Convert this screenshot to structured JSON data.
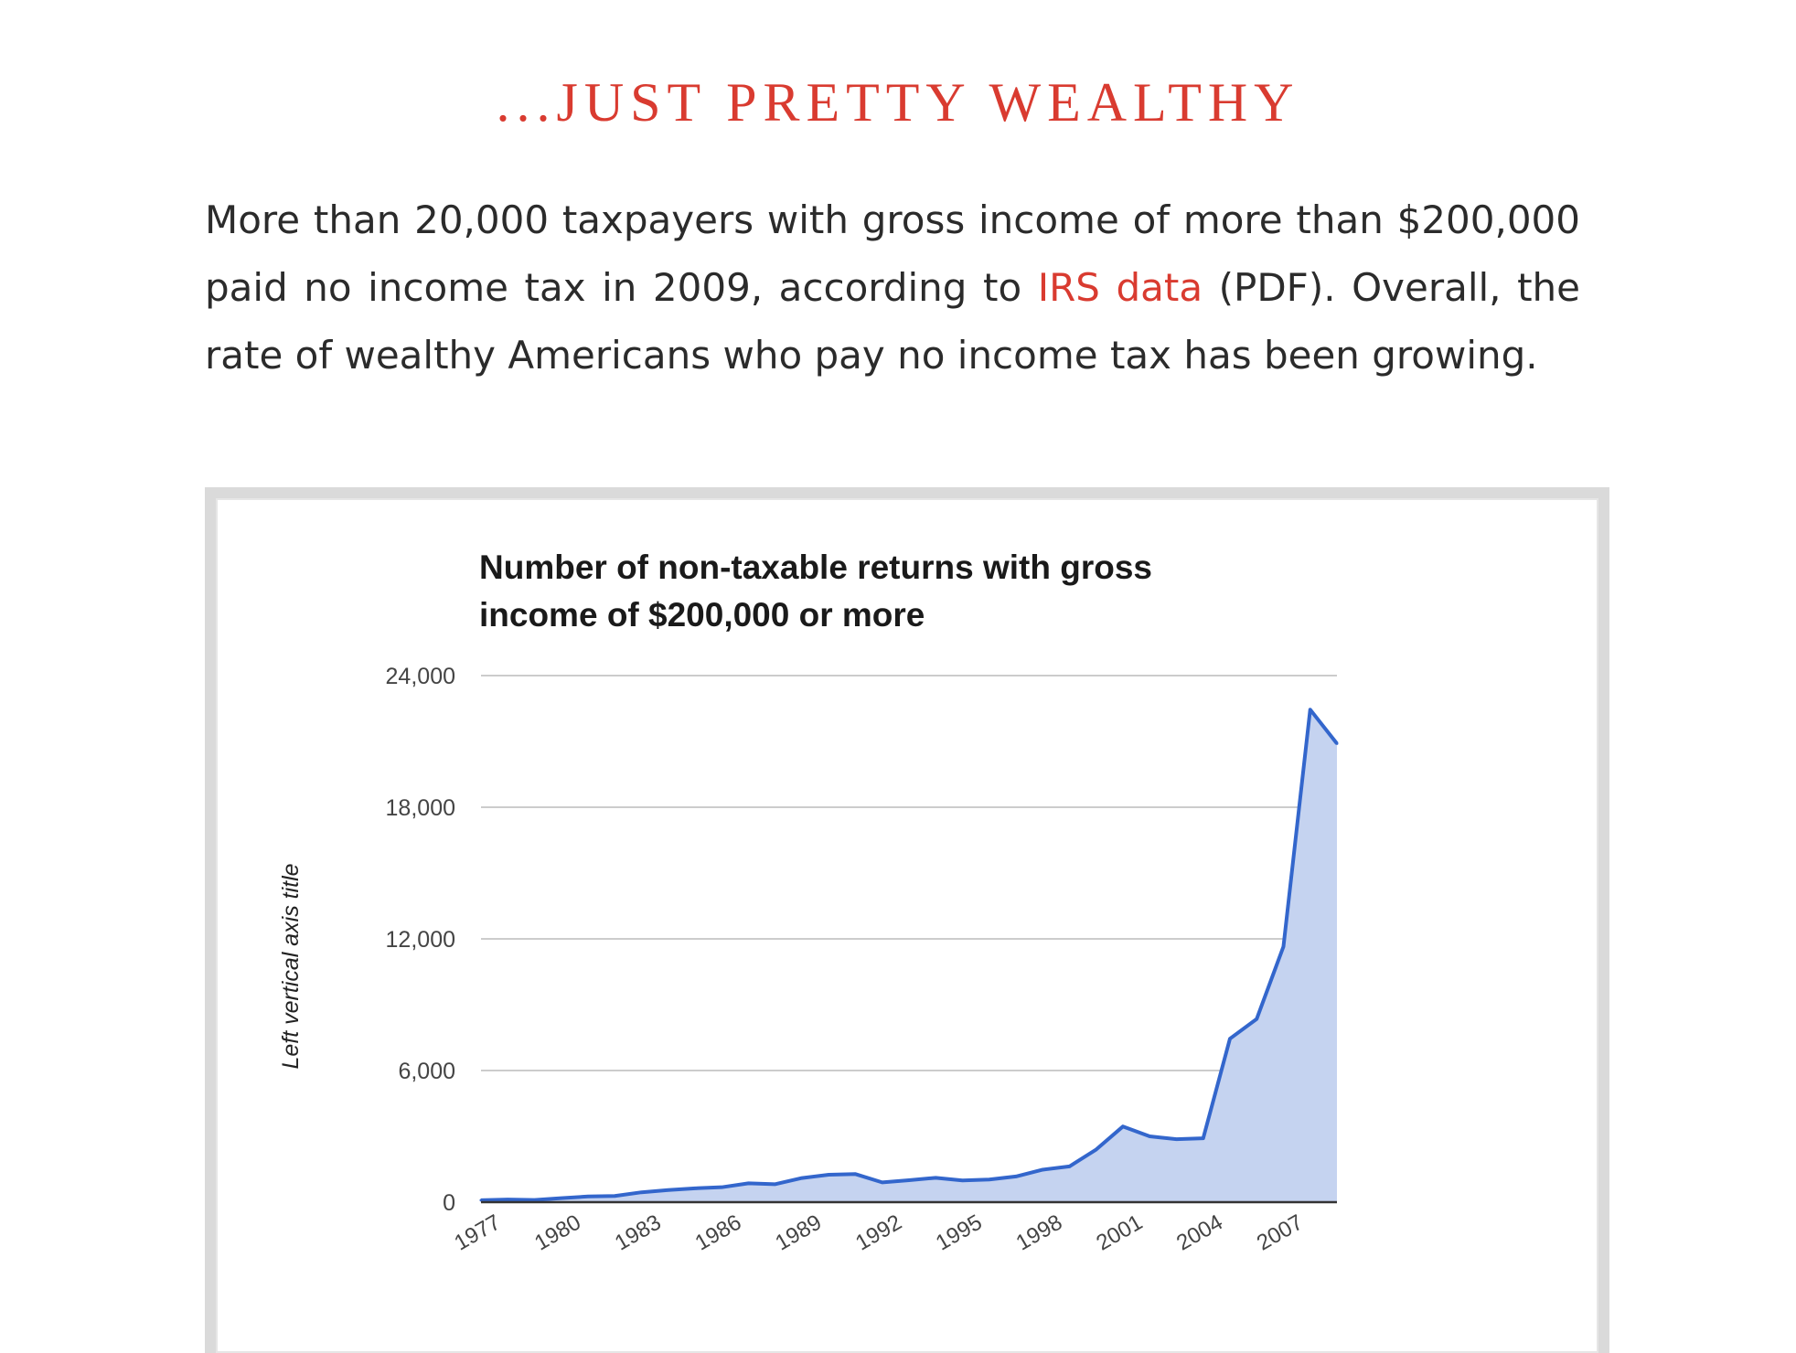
{
  "section_title": "...JUST PRETTY WEALTHY",
  "paragraph": {
    "before_link": "More than 20,000 taxpayers with gross income of more than $200,000 paid no income tax in 2009, according to ",
    "link_text": "IRS data",
    "after_link": " (PDF). Overall, the rate of wealthy Americans who pay no income tax has been growing."
  },
  "colors": {
    "accent": "#d93b30",
    "series_line": "#3366cc",
    "series_fill": "#c5d3f0"
  },
  "chart_data": {
    "type": "area",
    "title": "Number of non-taxable returns with gross income of $200,000 or more",
    "xlabel": "",
    "ylabel": "Left vertical axis title",
    "x": [
      1977,
      1978,
      1979,
      1980,
      1981,
      1982,
      1983,
      1984,
      1985,
      1986,
      1987,
      1988,
      1989,
      1990,
      1991,
      1992,
      1993,
      1994,
      1995,
      1996,
      1997,
      1998,
      1999,
      2000,
      2001,
      2002,
      2003,
      2004,
      2005,
      2006,
      2007,
      2008,
      2009
    ],
    "x_tick_labels": [
      "1977",
      "1980",
      "1983",
      "1986",
      "1989",
      "1992",
      "1995",
      "1998",
      "2001",
      "2004",
      "2007"
    ],
    "series": [
      {
        "values": [
          90,
          120,
          100,
          180,
          260,
          280,
          450,
          550,
          630,
          680,
          860,
          820,
          1100,
          1250,
          1280,
          900,
          1000,
          1110,
          990,
          1030,
          1170,
          1480,
          1630,
          2400,
          3450,
          3000,
          2870,
          2910,
          7450,
          8350,
          11650,
          22450,
          20900
        ]
      }
    ],
    "ylim": [
      0,
      24000
    ],
    "y_ticks": [
      0,
      6000,
      12000,
      18000,
      24000
    ],
    "y_tick_labels": [
      "0",
      "6,000",
      "12,000",
      "18,000",
      "24,000"
    ],
    "grid": true,
    "legend": "none"
  }
}
